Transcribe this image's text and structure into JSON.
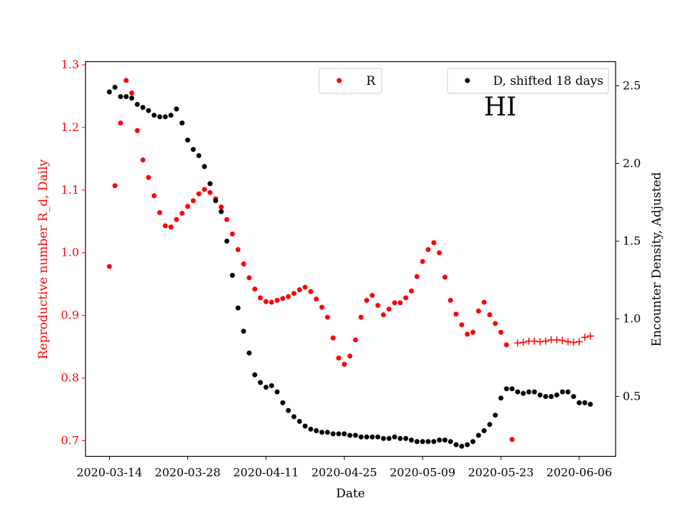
{
  "chart_data": {
    "type": "scatter",
    "state_label": "HI",
    "xlabel": "Date",
    "ylabel_left": "Reproductive number R_d, Daily",
    "ylabel_right": "Encounter Density, Adjusted",
    "x_start": "2020-03-14",
    "x_ticks": [
      "2020-03-14",
      "2020-03-28",
      "2020-04-11",
      "2020-04-25",
      "2020-05-09",
      "2020-05-23",
      "2020-06-06"
    ],
    "y_left_ticks": [
      "0.7",
      "0.8",
      "0.9",
      "1.0",
      "1.1",
      "1.2",
      "1.3"
    ],
    "y_left_lim": [
      0.675,
      1.305
    ],
    "y_right_ticks": [
      "0.5",
      "1.0",
      "1.5",
      "2.0",
      "2.5"
    ],
    "y_right_lim": [
      0.115,
      2.655
    ],
    "colors": {
      "R": "#ff0000",
      "D": "#000000",
      "left_axis": "#ff0000",
      "right_axis": "#000000"
    },
    "legend": {
      "R_label": "R",
      "D_label": "D, shifted 18 days"
    },
    "series_R": {
      "name": "R",
      "marker": "dot",
      "x": [
        "2020-03-14",
        "2020-03-15",
        "2020-03-16",
        "2020-03-17",
        "2020-03-18",
        "2020-03-19",
        "2020-03-20",
        "2020-03-21",
        "2020-03-22",
        "2020-03-23",
        "2020-03-24",
        "2020-03-25",
        "2020-03-26",
        "2020-03-27",
        "2020-03-28",
        "2020-03-29",
        "2020-03-30",
        "2020-03-31",
        "2020-04-01",
        "2020-04-02",
        "2020-04-03",
        "2020-04-04",
        "2020-04-05",
        "2020-04-06",
        "2020-04-07",
        "2020-04-08",
        "2020-04-09",
        "2020-04-10",
        "2020-04-11",
        "2020-04-12",
        "2020-04-13",
        "2020-04-14",
        "2020-04-15",
        "2020-04-16",
        "2020-04-17",
        "2020-04-18",
        "2020-04-19",
        "2020-04-20",
        "2020-04-21",
        "2020-04-22",
        "2020-04-23",
        "2020-04-24",
        "2020-04-25",
        "2020-04-26",
        "2020-04-27",
        "2020-04-28",
        "2020-04-29",
        "2020-04-30",
        "2020-05-01",
        "2020-05-02",
        "2020-05-03",
        "2020-05-04",
        "2020-05-05",
        "2020-05-06",
        "2020-05-07",
        "2020-05-08",
        "2020-05-09",
        "2020-05-10",
        "2020-05-11",
        "2020-05-12",
        "2020-05-13",
        "2020-05-14",
        "2020-05-15",
        "2020-05-16",
        "2020-05-17",
        "2020-05-18",
        "2020-05-19",
        "2020-05-20",
        "2020-05-21",
        "2020-05-22",
        "2020-05-23",
        "2020-05-24",
        "2020-05-25"
      ],
      "y": [
        0.978,
        1.107,
        1.207,
        1.275,
        1.255,
        1.195,
        1.148,
        1.12,
        1.091,
        1.064,
        1.043,
        1.041,
        1.053,
        1.063,
        1.074,
        1.083,
        1.094,
        1.101,
        1.096,
        1.086,
        1.073,
        1.053,
        1.03,
        1.005,
        0.982,
        0.96,
        0.942,
        0.928,
        0.922,
        0.921,
        0.924,
        0.927,
        0.93,
        0.935,
        0.941,
        0.945,
        0.938,
        0.926,
        0.913,
        0.897,
        0.864,
        0.832,
        0.822,
        0.835,
        0.861,
        0.897,
        0.924,
        0.932,
        0.916,
        0.901,
        0.91,
        0.92,
        0.92,
        0.928,
        0.939,
        0.962,
        0.986,
        1.005,
        1.016,
        1.0,
        0.961,
        0.924,
        0.902,
        0.885,
        0.87,
        0.873,
        0.907,
        0.921,
        0.901,
        0.887,
        0.873,
        0.853,
        0.702
      ]
    },
    "series_R_forecast": {
      "marker": "plus",
      "x": [
        "2020-05-26",
        "2020-05-27",
        "2020-05-28",
        "2020-05-29",
        "2020-05-30",
        "2020-05-31",
        "2020-06-01",
        "2020-06-02",
        "2020-06-03",
        "2020-06-04",
        "2020-06-05",
        "2020-06-06",
        "2020-06-07",
        "2020-06-08"
      ],
      "y": [
        0.856,
        0.857,
        0.859,
        0.859,
        0.858,
        0.859,
        0.861,
        0.861,
        0.86,
        0.858,
        0.857,
        0.858,
        0.865,
        0.867
      ]
    },
    "series_D": {
      "name": "D, shifted 18 days",
      "marker": "dot",
      "x": [
        "2020-03-14",
        "2020-03-15",
        "2020-03-16",
        "2020-03-17",
        "2020-03-18",
        "2020-03-19",
        "2020-03-20",
        "2020-03-21",
        "2020-03-22",
        "2020-03-23",
        "2020-03-24",
        "2020-03-25",
        "2020-03-26",
        "2020-03-27",
        "2020-03-28",
        "2020-03-29",
        "2020-03-30",
        "2020-03-31",
        "2020-04-01",
        "2020-04-02",
        "2020-04-03",
        "2020-04-04",
        "2020-04-05",
        "2020-04-06",
        "2020-04-07",
        "2020-04-08",
        "2020-04-09",
        "2020-04-10",
        "2020-04-11",
        "2020-04-12",
        "2020-04-13",
        "2020-04-14",
        "2020-04-15",
        "2020-04-16",
        "2020-04-17",
        "2020-04-18",
        "2020-04-19",
        "2020-04-20",
        "2020-04-21",
        "2020-04-22",
        "2020-04-23",
        "2020-04-24",
        "2020-04-25",
        "2020-04-26",
        "2020-04-27",
        "2020-04-28",
        "2020-04-29",
        "2020-04-30",
        "2020-05-01",
        "2020-05-02",
        "2020-05-03",
        "2020-05-04",
        "2020-05-05",
        "2020-05-06",
        "2020-05-07",
        "2020-05-08",
        "2020-05-09",
        "2020-05-10",
        "2020-05-11",
        "2020-05-12",
        "2020-05-13",
        "2020-05-14",
        "2020-05-15",
        "2020-05-16",
        "2020-05-17",
        "2020-05-18",
        "2020-05-19",
        "2020-05-20",
        "2020-05-21",
        "2020-05-22",
        "2020-05-23",
        "2020-05-24",
        "2020-05-25",
        "2020-05-26",
        "2020-05-27",
        "2020-05-28",
        "2020-05-29",
        "2020-05-30",
        "2020-05-31",
        "2020-06-01",
        "2020-06-02",
        "2020-06-03",
        "2020-06-04",
        "2020-06-05",
        "2020-06-06",
        "2020-06-07",
        "2020-06-08"
      ],
      "y": [
        2.46,
        2.49,
        2.43,
        2.43,
        2.42,
        2.38,
        2.36,
        2.34,
        2.31,
        2.3,
        2.3,
        2.31,
        2.35,
        2.26,
        2.15,
        2.09,
        2.05,
        1.98,
        1.87,
        1.76,
        1.69,
        1.5,
        1.28,
        1.07,
        0.92,
        0.78,
        0.64,
        0.59,
        0.56,
        0.57,
        0.53,
        0.46,
        0.41,
        0.37,
        0.34,
        0.31,
        0.29,
        0.28,
        0.27,
        0.27,
        0.26,
        0.26,
        0.26,
        0.25,
        0.25,
        0.24,
        0.24,
        0.24,
        0.24,
        0.23,
        0.23,
        0.24,
        0.23,
        0.23,
        0.22,
        0.21,
        0.21,
        0.21,
        0.21,
        0.22,
        0.22,
        0.21,
        0.19,
        0.18,
        0.19,
        0.21,
        0.25,
        0.28,
        0.32,
        0.38,
        0.49,
        0.55,
        0.55,
        0.53,
        0.52,
        0.53,
        0.53,
        0.51,
        0.5,
        0.5,
        0.51,
        0.53,
        0.53,
        0.5,
        0.46,
        0.46,
        0.45
      ]
    }
  }
}
